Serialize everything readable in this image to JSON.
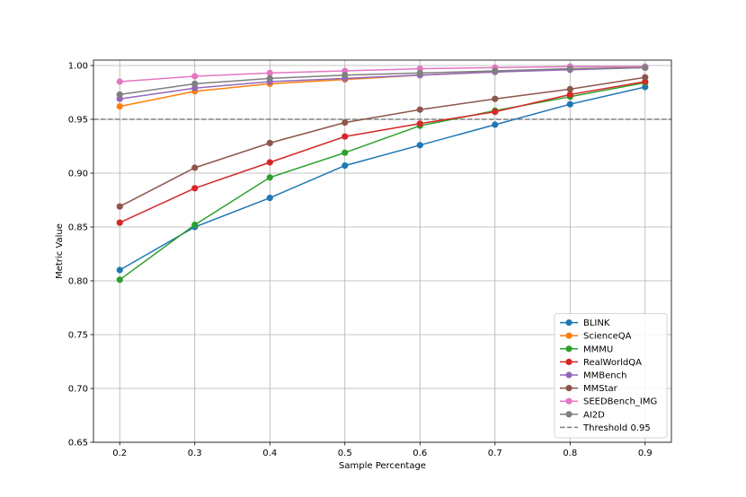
{
  "chart_data": {
    "type": "line",
    "title": "",
    "xlabel": "Sample Percentage",
    "ylabel": "Metric Value",
    "x": [
      0.2,
      0.3,
      0.4,
      0.5,
      0.6,
      0.7,
      0.8,
      0.9
    ],
    "x_tick_labels": [
      "0.2",
      "0.3",
      "0.4",
      "0.5",
      "0.6",
      "0.7",
      "0.8",
      "0.9"
    ],
    "y_ticks": [
      0.65,
      0.7,
      0.75,
      0.8,
      0.85,
      0.9,
      0.95,
      1.0
    ],
    "y_tick_labels": [
      "0.65",
      "0.70",
      "0.75",
      "0.80",
      "0.85",
      "0.90",
      "0.95",
      "1.00"
    ],
    "xlim": [
      0.165,
      0.935
    ],
    "ylim": [
      0.65,
      1.005
    ],
    "grid": true,
    "legend_position": "bottom-right",
    "series": [
      {
        "name": "BLINK",
        "color": "#1f77b4",
        "values": [
          0.81,
          0.85,
          0.877,
          0.907,
          0.926,
          0.945,
          0.964,
          0.98
        ]
      },
      {
        "name": "ScienceQA",
        "color": "#ff7f0e",
        "values": [
          0.962,
          0.976,
          0.983,
          0.987,
          0.991,
          0.994,
          0.997,
          0.998
        ]
      },
      {
        "name": "MMMU",
        "color": "#2ca02c",
        "values": [
          0.801,
          0.852,
          0.896,
          0.919,
          0.944,
          0.958,
          0.971,
          0.984
        ]
      },
      {
        "name": "RealWorldQA",
        "color": "#d62728",
        "values": [
          0.854,
          0.886,
          0.91,
          0.934,
          0.946,
          0.957,
          0.973,
          0.985
        ]
      },
      {
        "name": "MMBench",
        "color": "#9467bd",
        "values": [
          0.969,
          0.979,
          0.985,
          0.988,
          0.991,
          0.994,
          0.996,
          0.998
        ]
      },
      {
        "name": "MMStar",
        "color": "#8c564b",
        "values": [
          0.869,
          0.905,
          0.928,
          0.947,
          0.959,
          0.969,
          0.978,
          0.989
        ]
      },
      {
        "name": "SEEDBench_IMG",
        "color": "#e377c2",
        "values": [
          0.985,
          0.99,
          0.993,
          0.995,
          0.997,
          0.998,
          0.999,
          0.999
        ]
      },
      {
        "name": "AI2D",
        "color": "#7f7f7f",
        "values": [
          0.973,
          0.983,
          0.988,
          0.991,
          0.993,
          0.995,
          0.997,
          0.998
        ]
      }
    ],
    "threshold": {
      "name": "Threshold 0.95",
      "value": 0.95,
      "color": "#808080",
      "style": "dashed"
    }
  }
}
